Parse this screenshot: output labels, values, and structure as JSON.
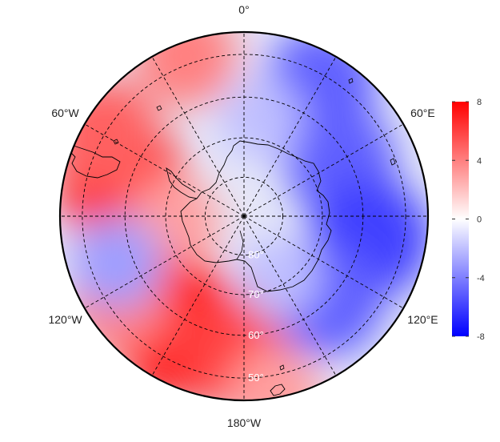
{
  "map": {
    "projection": "south-polar-stereographic",
    "boundary_latitude": -45,
    "longitude_labels": [
      {
        "lon": 0,
        "text": "0°"
      },
      {
        "lon": 60,
        "text": "60°E"
      },
      {
        "lon": 120,
        "text": "120°E"
      },
      {
        "lon": 180,
        "text": "180°W"
      },
      {
        "lon": -120,
        "text": "120°W"
      },
      {
        "lon": -60,
        "text": "60°W"
      }
    ],
    "latitude_labels": [
      {
        "lat": -80,
        "text": "80°"
      },
      {
        "lat": -70,
        "text": "70°"
      },
      {
        "lat": -60,
        "text": "60°"
      },
      {
        "lat": -50,
        "text": "50°"
      }
    ],
    "graticule": {
      "latitudes": [
        -50,
        -60,
        -70,
        -80
      ],
      "meridian_step_deg": 30,
      "style": "dashed"
    },
    "field_anomalies": [
      {
        "lon": -75,
        "lat": -58,
        "value": 7
      },
      {
        "lon": -60,
        "lat": -50,
        "value": 5
      },
      {
        "lon": -20,
        "lat": -48,
        "value": 4
      },
      {
        "lon": -95,
        "lat": -72,
        "value": 3
      },
      {
        "lon": -150,
        "lat": -57,
        "value": 8
      },
      {
        "lon": -175,
        "lat": -56,
        "value": 6
      },
      {
        "lon": -125,
        "lat": -52,
        "value": 4
      },
      {
        "lon": 30,
        "lat": -52,
        "value": -5
      },
      {
        "lon": 60,
        "lat": -62,
        "value": -5
      },
      {
        "lon": 100,
        "lat": -58,
        "value": -6
      },
      {
        "lon": 135,
        "lat": -60,
        "value": -5
      },
      {
        "lon": -110,
        "lat": -56,
        "value": -3
      },
      {
        "lon": 10,
        "lat": -65,
        "value": -2
      },
      {
        "lon": 150,
        "lat": -72,
        "value": -2
      },
      {
        "lon": 170,
        "lat": -46,
        "value": 3
      }
    ]
  },
  "colorbar": {
    "min": -8,
    "max": 8,
    "ticks": [
      {
        "value": 8,
        "label": "8"
      },
      {
        "value": 4,
        "label": "4"
      },
      {
        "value": 0,
        "label": "0"
      },
      {
        "value": -4,
        "label": "-4"
      },
      {
        "value": -8,
        "label": "-8"
      }
    ],
    "colors": {
      "low": "#0000ff",
      "mid": "#ffffff",
      "high": "#ff0000"
    }
  }
}
